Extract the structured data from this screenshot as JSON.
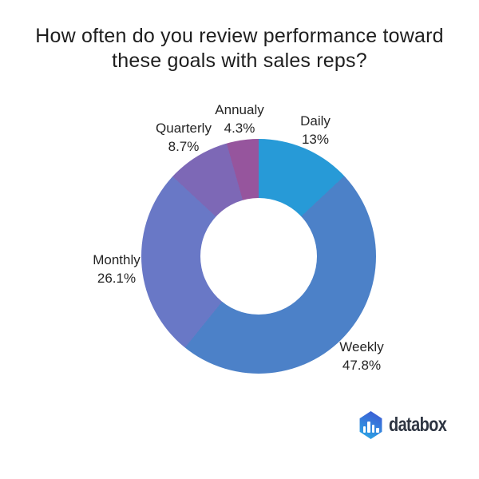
{
  "title": {
    "lines": [
      "How often do you review performance toward",
      "these goals with sales reps?"
    ],
    "full_text": "How often do you review performance toward these goals with sales reps?"
  },
  "chart_data": {
    "type": "pie",
    "subtype": "donut",
    "title": "How often do you review performance toward these goals with sales reps?",
    "start_angle_deg": 0,
    "direction": "clockwise",
    "inner_radius_ratio": 0.5,
    "legend": "none",
    "labels_position": "outside",
    "background_color": "#ffffff",
    "slices": [
      {
        "label": "Daily",
        "value": 13,
        "value_label": "13%",
        "color": "#279ad7"
      },
      {
        "label": "Weekly",
        "value": 47.8,
        "value_label": "47.8%",
        "color": "#4c81c8"
      },
      {
        "label": "Monthly",
        "value": 26.1,
        "value_label": "26.1%",
        "color": "#6978c6"
      },
      {
        "label": "Quarterly",
        "value": 8.7,
        "value_label": "8.7%",
        "color": "#7d68b6"
      },
      {
        "label": "Annualy",
        "value": 4.3,
        "value_label": "4.3%",
        "color": "#96559d"
      }
    ]
  },
  "branding": {
    "logo_text": "databox",
    "logo_icon": "databox-hexagon-bar-chart-icon",
    "icon_gradient": [
      "#3c5cd4",
      "#2da4e4"
    ],
    "icon_bar_heights": [
      8,
      14,
      10,
      6
    ],
    "text_color": "#2e3542"
  }
}
